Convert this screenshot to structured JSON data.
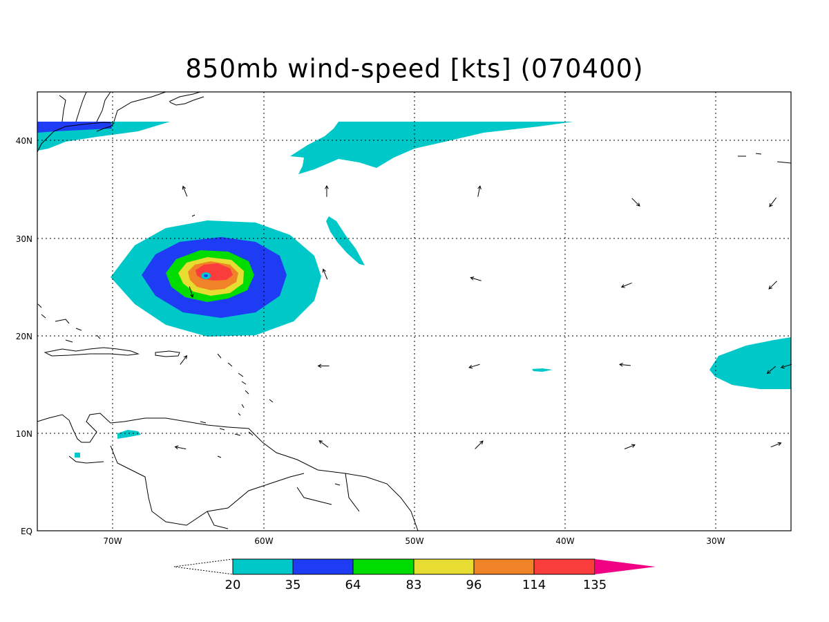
{
  "title": "850mb wind-speed [kts] (070400)",
  "axes": {
    "x_labels": [
      "70W",
      "60W",
      "50W",
      "40W",
      "30W"
    ],
    "y_labels": [
      "40N",
      "30N",
      "20N",
      "10N",
      "EQ"
    ],
    "lon_range": [
      -75,
      -25
    ],
    "lat_range": [
      0,
      45
    ]
  },
  "colorbar": {
    "levels": [
      "20",
      "35",
      "64",
      "83",
      "96",
      "114",
      "135"
    ],
    "colors": [
      "#00c8c8",
      "#1f3cf5",
      "#00dc00",
      "#e6dc32",
      "#f08228",
      "#fa3c3c",
      "#f00082"
    ],
    "below_color": "#ffffff"
  },
  "colors": {
    "grid": "#000000",
    "coast": "#000000"
  },
  "chart_data": {
    "type": "heatmap",
    "title": "850mb wind-speed [kts] (070400)",
    "variable": "850mb wind-speed",
    "units": "kts",
    "x_ticks": [
      -70,
      -60,
      -50,
      -40,
      -30
    ],
    "y_ticks": [
      0,
      10,
      20,
      30,
      40
    ],
    "xlim": [
      -75,
      -25
    ],
    "ylim": [
      0,
      45
    ],
    "grid": true,
    "levels": [
      20,
      35,
      64,
      83,
      96,
      114,
      135
    ],
    "storm_center": {
      "lon": -64,
      "lat": 26.2
    },
    "wind_vectors": [
      {
        "lon": -65.2,
        "lat": 34.8,
        "u": -0.4,
        "v": 1.0
      },
      {
        "lon": -55.8,
        "lat": 34.8,
        "u": 0.0,
        "v": 1.0
      },
      {
        "lon": -45.7,
        "lat": 34.8,
        "u": 0.2,
        "v": 1.0
      },
      {
        "lon": -35.3,
        "lat": 33.7,
        "u": 0.7,
        "v": -0.7
      },
      {
        "lon": -26.2,
        "lat": 33.7,
        "u": -0.6,
        "v": -0.8
      },
      {
        "lon": -55.9,
        "lat": 26.3,
        "u": -0.4,
        "v": 1.0
      },
      {
        "lon": -45.9,
        "lat": 25.8,
        "u": -1.0,
        "v": 0.3
      },
      {
        "lon": -35.9,
        "lat": 25.2,
        "u": -1.0,
        "v": -0.4
      },
      {
        "lon": -26.2,
        "lat": 25.2,
        "u": -0.7,
        "v": -0.7
      },
      {
        "lon": -64.8,
        "lat": 24.5,
        "u": 0.3,
        "v": -1.0
      },
      {
        "lon": -65.3,
        "lat": 17.5,
        "u": 0.6,
        "v": 0.8
      },
      {
        "lon": -56.0,
        "lat": 16.9,
        "u": -1.0,
        "v": 0.0
      },
      {
        "lon": -46.0,
        "lat": 16.9,
        "u": -1.0,
        "v": -0.3
      },
      {
        "lon": -36.0,
        "lat": 17.0,
        "u": -1.0,
        "v": 0.1
      },
      {
        "lon": -26.3,
        "lat": 16.5,
        "u": -0.7,
        "v": -0.6
      },
      {
        "lon": -25.3,
        "lat": 16.9,
        "u": -1.0,
        "v": -0.3
      },
      {
        "lon": -65.5,
        "lat": 8.5,
        "u": -1.0,
        "v": 0.2
      },
      {
        "lon": -56.0,
        "lat": 8.9,
        "u": -0.8,
        "v": 0.6
      },
      {
        "lon": -45.7,
        "lat": 8.8,
        "u": 0.7,
        "v": 0.7
      },
      {
        "lon": -35.7,
        "lat": 8.6,
        "u": 1.0,
        "v": 0.4
      },
      {
        "lon": -26.0,
        "lat": 8.8,
        "u": 1.0,
        "v": 0.4
      }
    ]
  }
}
